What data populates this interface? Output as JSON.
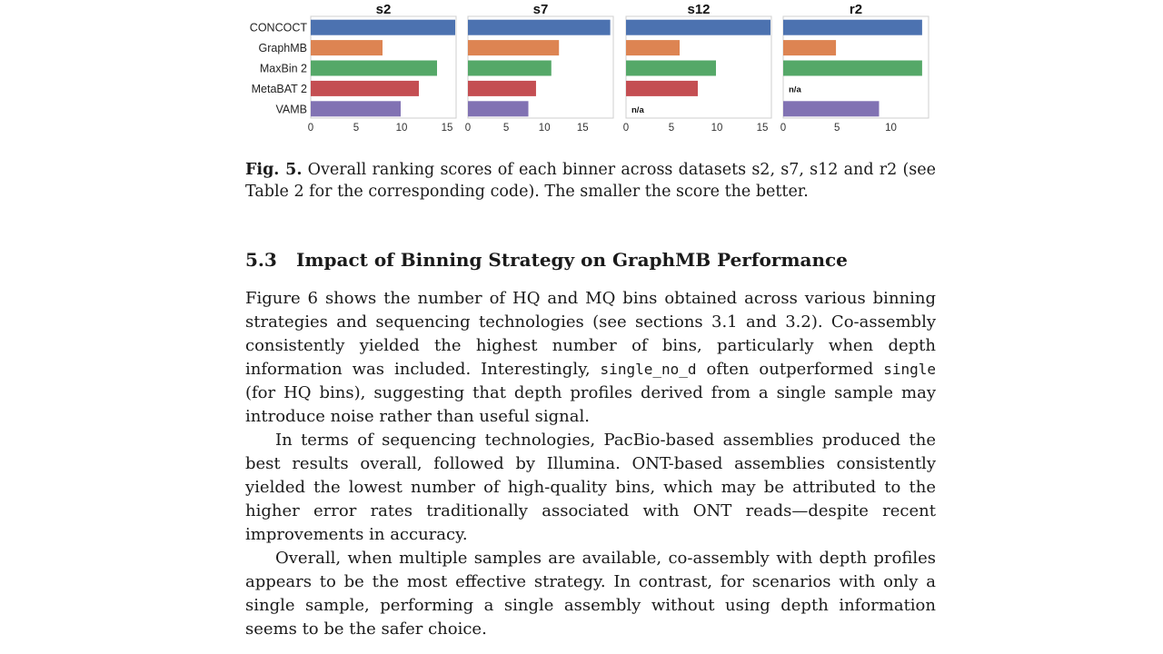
{
  "chart_data": [
    {
      "type": "bar",
      "orientation": "horizontal",
      "title": "s2",
      "categories": [
        "CONCOCT",
        "GraphMB",
        "MaxBin 2",
        "MetaBAT 2",
        "VAMB"
      ],
      "values": [
        15.9,
        7.9,
        13.9,
        11.9,
        9.9
      ],
      "xlim": [
        0,
        16
      ],
      "xticks": [
        "0",
        "5",
        "10",
        "15"
      ],
      "missing_label": "n/a"
    },
    {
      "type": "bar",
      "orientation": "horizontal",
      "title": "s7",
      "categories": [
        "CONCOCT",
        "GraphMB",
        "MaxBin 2",
        "MetaBAT 2",
        "VAMB"
      ],
      "values": [
        18.6,
        11.9,
        10.9,
        8.9,
        7.9
      ],
      "xlim": [
        0,
        19
      ],
      "xticks": [
        "0",
        "5",
        "10",
        "15"
      ],
      "missing_label": "n/a"
    },
    {
      "type": "bar",
      "orientation": "horizontal",
      "title": "s12",
      "categories": [
        "CONCOCT",
        "GraphMB",
        "MaxBin 2",
        "MetaBAT 2",
        "VAMB"
      ],
      "values": [
        15.9,
        5.9,
        9.9,
        7.9,
        null
      ],
      "xlim": [
        0,
        16
      ],
      "xticks": [
        "0",
        "5",
        "10",
        "15"
      ],
      "missing_label": "n/a"
    },
    {
      "type": "bar",
      "orientation": "horizontal",
      "title": "r2",
      "categories": [
        "CONCOCT",
        "GraphMB",
        "MaxBin 2",
        "MetaBAT 2",
        "VAMB"
      ],
      "values": [
        12.9,
        4.9,
        12.9,
        null,
        8.9
      ],
      "xlim": [
        0,
        13.5
      ],
      "xticks": [
        "0",
        "5",
        "10"
      ],
      "missing_label": "n/a"
    }
  ],
  "colors": {
    "CONCOCT": "#4c72b0",
    "GraphMB": "#dd8452",
    "MaxBin 2": "#55a868",
    "MetaBAT 2": "#c44e52",
    "VAMB": "#8172b3"
  },
  "caption": {
    "label": "Fig. 5.",
    "text": "Overall ranking scores of each binner across datasets s2, s7, s12 and r2 (see Table 2 for the corresponding code). The smaller the score the better."
  },
  "section": {
    "number": "5.3",
    "title": "Impact of Binning Strategy on GraphMB Performance"
  },
  "paragraph1": {
    "part1": "Figure 6 shows the number of HQ and MQ bins obtained across various binning strategies and sequencing technologies (see sections 3.1 and 3.2). Co-assembly consistently yielded the highest number of bins, particularly when depth information was included. Interestingly,",
    "code1": "single_no_d",
    "part2": "often outperformed",
    "code2": "single",
    "part3": "(for HQ bins), suggesting that depth profiles derived from a single sample may introduce noise rather than useful signal."
  },
  "paragraph2": "In terms of sequencing technologies, PacBio-based assemblies produced the best results overall, followed by Illumina. ONT-based assemblies consistently yielded the lowest number of high-quality bins, which may be attributed to the higher error rates traditionally associated with ONT reads—despite recent improvements in accuracy.",
  "paragraph3": "Overall, when multiple samples are available, co-assembly with depth profiles appears to be the most effective strategy. In contrast, for scenarios with only a single sample, performing a single assembly without using depth information seems to be the safer choice."
}
